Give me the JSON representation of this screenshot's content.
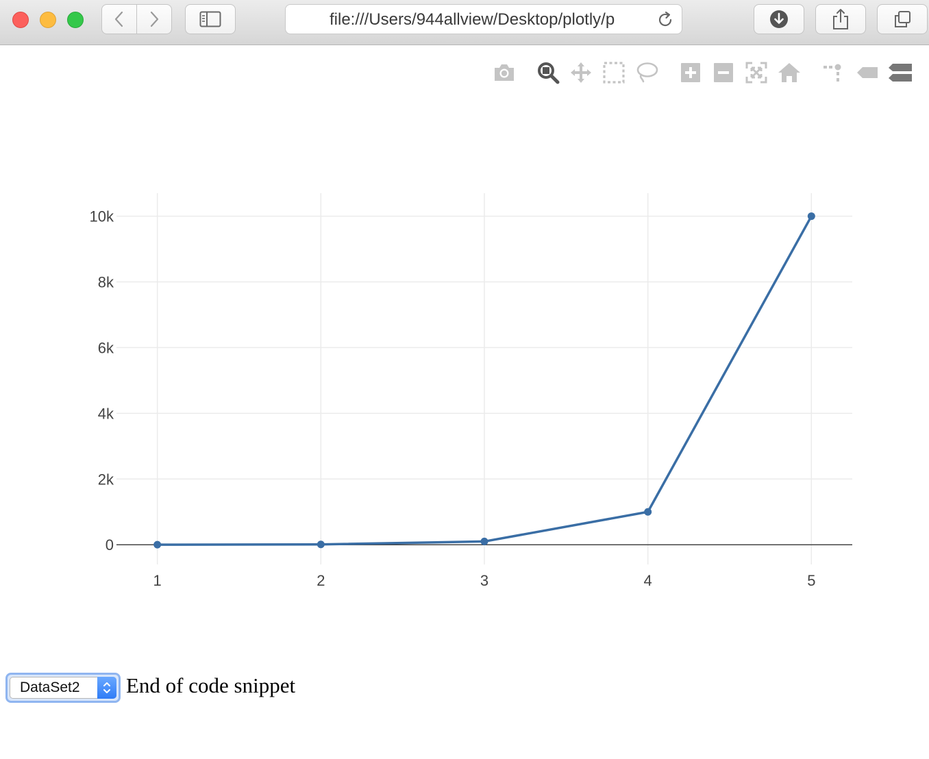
{
  "browser": {
    "url": "file:///Users/944allview/Desktop/plotly/p",
    "colors": {
      "close": "#fc605c",
      "minimize": "#fdbc40",
      "maximize": "#34c84a"
    },
    "buttons": {
      "back": "chevron-left-icon",
      "forward": "chevron-right-icon",
      "sidebar": "sidebar-icon",
      "reload": "reload-icon",
      "downloads": "download-icon",
      "share": "share-icon",
      "tabs": "tabs-icon"
    }
  },
  "modebar": {
    "buttons": [
      "camera-icon",
      "zoom-icon",
      "pan-icon",
      "box-select-icon",
      "lasso-icon",
      "zoom-in-icon",
      "zoom-out-icon",
      "autoscale-icon",
      "reset-axes-icon",
      "spike-lines-icon",
      "hover-closest-icon",
      "hover-compare-icon"
    ],
    "active": "zoom-icon"
  },
  "chart_data": {
    "type": "line",
    "x": [
      1,
      2,
      3,
      4,
      5
    ],
    "series": [
      {
        "values": [
          1,
          10,
          100,
          1000,
          10000
        ],
        "color": "#3a6ea5",
        "mode": "lines+markers"
      }
    ],
    "xlim": [
      0.75,
      5.25
    ],
    "ylim": [
      -600,
      10700
    ],
    "xticks": [
      "1",
      "2",
      "3",
      "4",
      "5"
    ],
    "yticks": [
      {
        "value": 0,
        "label": "0"
      },
      {
        "value": 2000,
        "label": "2k"
      },
      {
        "value": 4000,
        "label": "4k"
      },
      {
        "value": 6000,
        "label": "6k"
      },
      {
        "value": 8000,
        "label": "8k"
      },
      {
        "value": 10000,
        "label": "10k"
      }
    ],
    "grid": true,
    "zeroline": true
  },
  "controls": {
    "dataset_select": {
      "value": "DataSet2"
    },
    "end_text": "End of code snippet"
  }
}
